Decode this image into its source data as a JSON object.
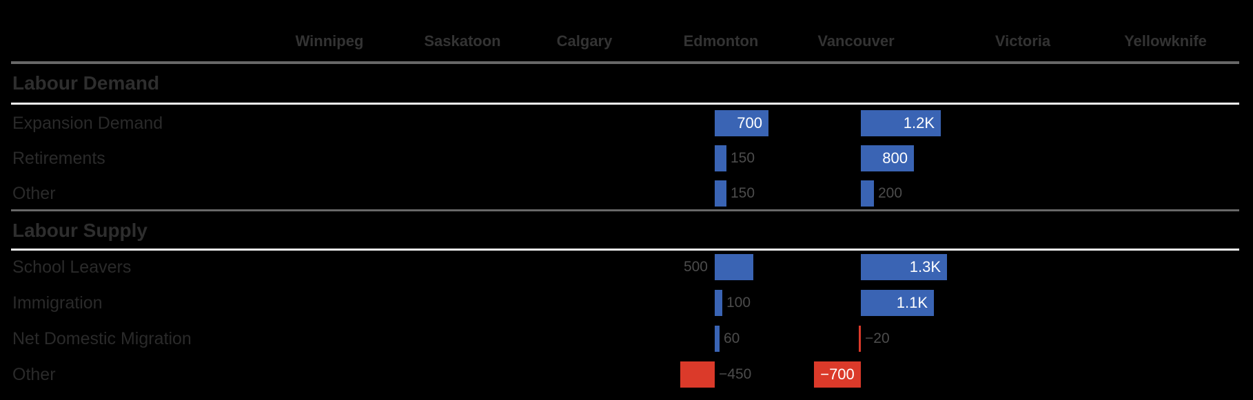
{
  "chart_data": {
    "type": "table",
    "title": "",
    "description": "Table of horizontal bar cells showing labour demand and supply components by city; only Edmonton and Vancouver columns contain data bars.",
    "columns": [
      "Winnipeg",
      "Saskatoon",
      "Calgary",
      "Edmonton",
      "Vancouver",
      "Victoria",
      "Yellowknife"
    ],
    "sections": [
      {
        "title": "Labour Demand",
        "rows": [
          {
            "label": "Expansion Demand",
            "cells": [
              {
                "col": "Edmonton",
                "value": 700,
                "label": "700",
                "color": "blue",
                "label_pos": "in-right"
              },
              {
                "col": "Vancouver",
                "value": 1200,
                "label": "1.2K",
                "color": "blue",
                "label_pos": "in-right"
              }
            ]
          },
          {
            "label": "Retirements",
            "cells": [
              {
                "col": "Edmonton",
                "value": 150,
                "label": "150",
                "color": "blue",
                "label_pos": "out-right"
              },
              {
                "col": "Vancouver",
                "value": 800,
                "label": "800",
                "color": "blue",
                "label_pos": "in-right"
              }
            ]
          },
          {
            "label": "Other",
            "cells": [
              {
                "col": "Edmonton",
                "value": 150,
                "label": "150",
                "color": "blue",
                "label_pos": "out-right"
              },
              {
                "col": "Vancouver",
                "value": 200,
                "label": "200",
                "color": "blue",
                "label_pos": "out-right"
              }
            ]
          }
        ]
      },
      {
        "title": "Labour Supply",
        "rows": [
          {
            "label": "School Leavers",
            "cells": [
              {
                "col": "Edmonton",
                "value": 500,
                "label": "500",
                "color": "blue",
                "label_pos": "out-left"
              },
              {
                "col": "Vancouver",
                "value": 1300,
                "label": "1.3K",
                "color": "blue",
                "label_pos": "in-right"
              }
            ]
          },
          {
            "label": "Immigration",
            "cells": [
              {
                "col": "Edmonton",
                "value": 100,
                "label": "100",
                "color": "blue",
                "label_pos": "out-right"
              },
              {
                "col": "Vancouver",
                "value": 1100,
                "label": "1.1K",
                "color": "blue",
                "label_pos": "in-right"
              }
            ]
          },
          {
            "label": "Net Domestic Migration",
            "cells": [
              {
                "col": "Edmonton",
                "value": 60,
                "label": "60",
                "color": "blue",
                "label_pos": "out-right"
              },
              {
                "col": "Vancouver",
                "value": -20,
                "label": "−20",
                "color": "red",
                "label_pos": "out-right"
              }
            ]
          },
          {
            "label": "Other",
            "cells": [
              {
                "col": "Edmonton",
                "value": -450,
                "label": "−450",
                "color": "red",
                "label_pos": "out-right"
              },
              {
                "col": "Vancouver",
                "value": -700,
                "label": "−700",
                "color": "red",
                "label_pos": "in-center"
              }
            ]
          }
        ]
      }
    ],
    "colors": {
      "blue": "#3A64B4",
      "red": "#DB3A2A",
      "background": "#000000",
      "bar_label_inside": "#FFFFFF",
      "bar_label_outside": "#4C4C4C"
    },
    "layout_hints": {
      "legend": "none",
      "grid": "off",
      "positive_bars_color": "blue",
      "negative_bars_color": "red",
      "bars_grow_from_column_baseline": true
    }
  }
}
